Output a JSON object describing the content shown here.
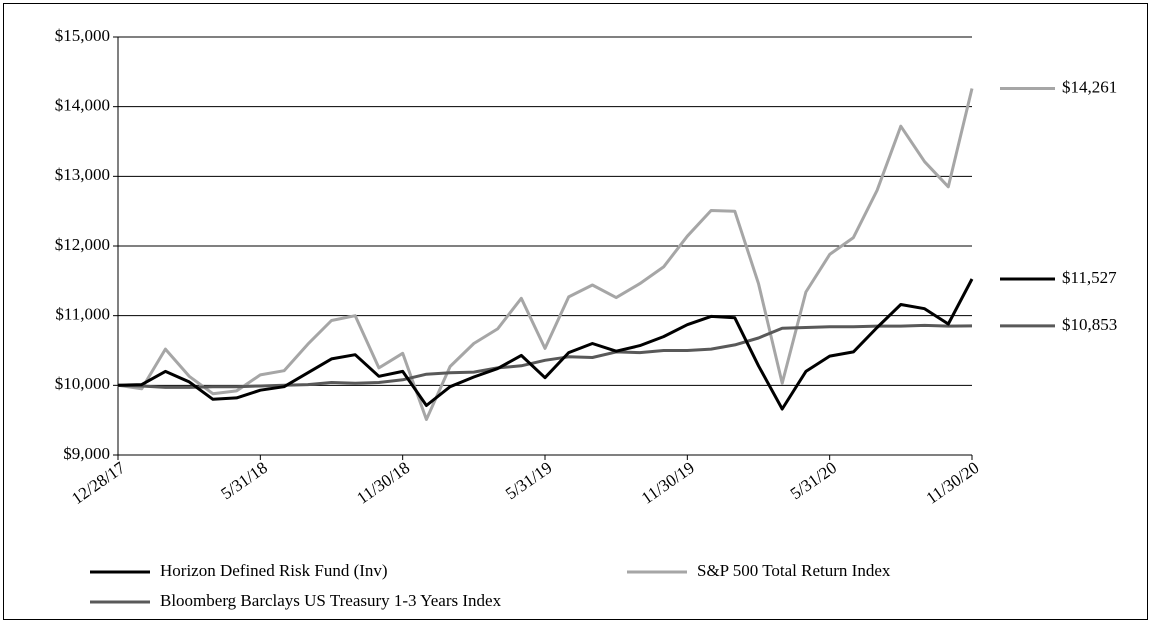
{
  "chart_data": {
    "type": "line",
    "categories": [
      "12/28/17",
      null,
      null,
      null,
      null,
      null,
      "5/31/18",
      null,
      null,
      null,
      null,
      null,
      "11/30/18",
      null,
      null,
      null,
      null,
      null,
      "5/31/19",
      null,
      null,
      null,
      null,
      null,
      "11/30/19",
      null,
      null,
      null,
      null,
      null,
      "5/31/20",
      null,
      null,
      null,
      null,
      null,
      "11/30/20"
    ],
    "series": [
      {
        "name": "Horizon Defined Risk Fund (Inv)",
        "color": "#000000",
        "end_label": "$11,527",
        "values": [
          10000,
          10010,
          10200,
          10050,
          9800,
          9820,
          9930,
          9980,
          10180,
          10380,
          10440,
          10130,
          10200,
          9710,
          9980,
          10120,
          10240,
          10430,
          10110,
          10470,
          10600,
          10490,
          10570,
          10700,
          10870,
          10990,
          10970,
          10280,
          9660,
          10200,
          10420,
          10480,
          10830,
          11160,
          11100,
          10880,
          11527
        ]
      },
      {
        "name": "S&P 500 Total Return Index",
        "color": "#a6a6a6",
        "end_label": "$14,261",
        "values": [
          10000,
          9950,
          10520,
          10130,
          9880,
          9920,
          10150,
          10210,
          10590,
          10930,
          11000,
          10250,
          10460,
          9510,
          10270,
          10600,
          10810,
          11250,
          10530,
          11270,
          11440,
          11260,
          11460,
          11700,
          12140,
          12510,
          12500,
          11460,
          10030,
          11340,
          11880,
          12120,
          12800,
          13720,
          13210,
          12850,
          14261
        ]
      },
      {
        "name": "Bloomberg Barclays US Treasury 1-3 Years Index",
        "color": "#595959",
        "end_label": "$10,853",
        "values": [
          10000,
          9990,
          9970,
          9970,
          9980,
          9980,
          9990,
          10000,
          10010,
          10040,
          10030,
          10040,
          10080,
          10160,
          10180,
          10190,
          10250,
          10280,
          10360,
          10410,
          10400,
          10480,
          10470,
          10500,
          10500,
          10520,
          10580,
          10680,
          10820,
          10830,
          10840,
          10840,
          10850,
          10850,
          10860,
          10850,
          10853
        ]
      }
    ],
    "ylim": [
      9000,
      15000
    ],
    "yticks": [
      {
        "value": 9000,
        "label": "$9,000"
      },
      {
        "value": 10000,
        "label": "$10,000"
      },
      {
        "value": 11000,
        "label": "$11,000"
      },
      {
        "value": 12000,
        "label": "$12,000"
      },
      {
        "value": 13000,
        "label": "$13,000"
      },
      {
        "value": 14000,
        "label": "$14,000"
      },
      {
        "value": 15000,
        "label": "$15,000"
      }
    ],
    "grid": true
  }
}
